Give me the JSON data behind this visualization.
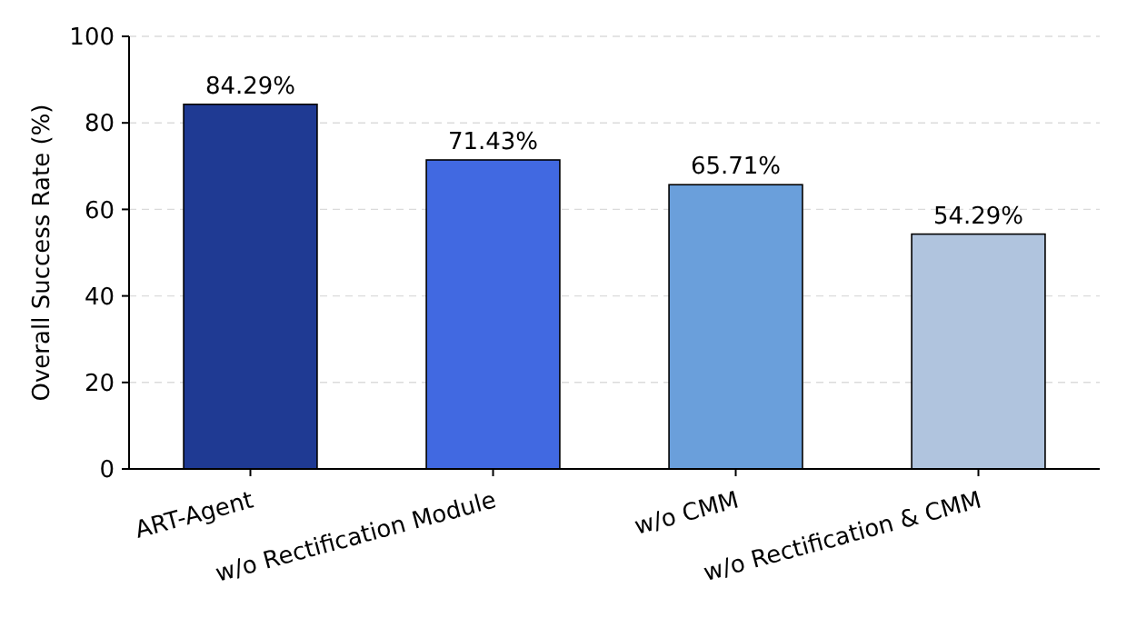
{
  "chart_data": {
    "type": "bar",
    "ylabel": "Overall Success Rate (%)",
    "categories": [
      "ART-Agent",
      "w/o Rectification Module",
      "w/o CMM",
      "w/o Rectification & CMM"
    ],
    "values": [
      84.29,
      71.43,
      65.71,
      54.29
    ],
    "colors": [
      "#1f3a93",
      "#4169e1",
      "#6a9fdb",
      "#b0c4de"
    ],
    "value_labels": [
      "84.29%",
      "71.43%",
      "65.71%",
      "54.29%"
    ],
    "ylim": [
      0,
      100
    ],
    "yticks": [
      0,
      20,
      40,
      60,
      80,
      100
    ],
    "grid": "y"
  }
}
